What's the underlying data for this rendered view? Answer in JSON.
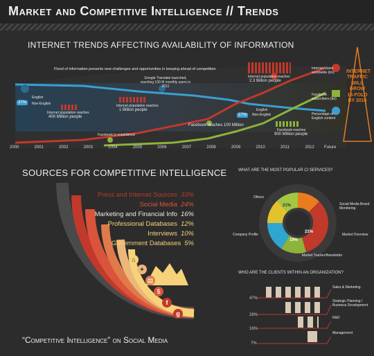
{
  "header": {
    "title": "Market and Competitive Intelligence // Trends"
  },
  "trends": {
    "title": "INTERNET TRENDS AFFECTING AVAILABILITY OF INFORMATION",
    "banner": "Flood of information presents new challenges and opportunities in keeping ahead of competition",
    "years": [
      "2000",
      "2001",
      "2002",
      "2003",
      "2004",
      "2005",
      "2006",
      "2007",
      "2008",
      "2009",
      "2010",
      "2011",
      "2012",
      "Future"
    ],
    "notes": {
      "english_pct": "37%",
      "english": "English",
      "non_english": "Non-English",
      "pop_400": "Internet population reaches",
      "pop_400_val": "400 Million people",
      "pop_1b": "Internet population reaches",
      "pop_1b_val": "1 Billion people",
      "google_translate": "Google Translate launched, reaching 100 M monthly users in 2011",
      "fb_established": "Facebook is established",
      "fb_100": "Facebook reaches 100 Million",
      "pop_23b": "Internet population reaches",
      "pop_23b_val": "2.3 Billion people",
      "pct_27": "27%",
      "fb_900": "Facebook reaches",
      "fb_900_val": "900 Million people",
      "users_label": "Internet Users worldwide (bn)",
      "fb_label": "Facebook subscribers (bn)",
      "english_label": "Percentage of English content",
      "traffic": "INTERNET TRAFFIC WILL GROW 18-FOLD BY 2016"
    }
  },
  "sources": {
    "title": "SOURCES FOR COMPETITIVE INTELLIGENCE",
    "items": [
      {
        "label": "Press and Internet Sources",
        "pct": "33%",
        "color": "#c0392b"
      },
      {
        "label": "Social Media",
        "pct": "24%",
        "color": "#d9543a"
      },
      {
        "label": "Marketing and Financial Info",
        "pct": "16%",
        "color": "#f0eadf"
      },
      {
        "label": "Professional Databases",
        "pct": "12%",
        "color": "#f6d37a"
      },
      {
        "label": "Interviews",
        "pct": "10%",
        "color": "#f6d37a"
      },
      {
        "label": "Government Databases",
        "pct": "5%",
        "color": "#f6d37a"
      }
    ]
  },
  "ci_services": {
    "title": "WHAT ARE THE MOST POPULAR CI SERVICES?",
    "segments": [
      {
        "label": "Others",
        "value": "21%",
        "color": "#a4c642"
      },
      {
        "label": "Social Media Brand Monitoring",
        "value": "",
        "color": "#e87c1e"
      },
      {
        "label": "Market Overview",
        "value": "21%",
        "color": "#c0392b"
      },
      {
        "label": "Market Tracker/Newsletter",
        "value": "19%",
        "color": "#8db33a"
      },
      {
        "label": "Company Profile",
        "value": "",
        "color": "#2fa6cf"
      },
      {
        "label": "",
        "value": "",
        "color": "#e3c230"
      }
    ],
    "inner_labels": [
      "21%",
      "21%",
      "19%"
    ]
  },
  "clients": {
    "title": "WHO ARE THE CLIENTS WITHIN AN ORGANIZATION?",
    "rows": [
      {
        "pct": "47%",
        "label": "Sales & Marketing"
      },
      {
        "pct": "28%",
        "label": "Strategic Planning / Business Development"
      },
      {
        "pct": "16%",
        "label": "R&D"
      },
      {
        "pct": "7%",
        "label": "Management"
      }
    ]
  },
  "bottom": {
    "title": "“Competitive Intelligence” on Social Media"
  },
  "colors": {
    "red": "#c0392b",
    "blue": "#3aa0d0",
    "green": "#8db33a",
    "orange": "#e87c1e",
    "yellow": "#f6d37a"
  },
  "icons": [
    "bank-icon",
    "lightbulb-icon",
    "chart-icon",
    "dollar-icon",
    "facebook-icon",
    "google-icon"
  ]
}
